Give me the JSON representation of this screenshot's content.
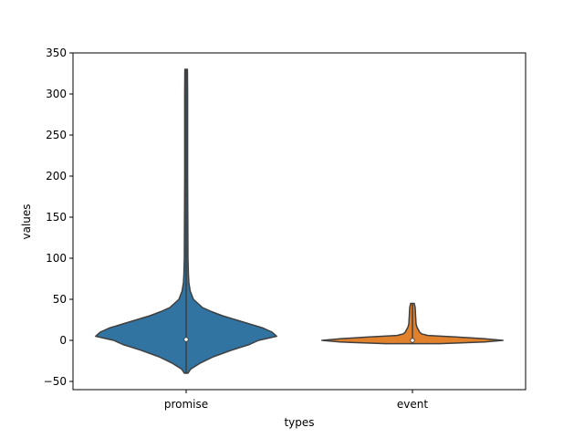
{
  "chart_data": {
    "type": "violin",
    "title": "",
    "xlabel": "types",
    "ylabel": "values",
    "ylim": [
      -60,
      350
    ],
    "yticks": [
      -50,
      0,
      50,
      100,
      150,
      200,
      250,
      300,
      350
    ],
    "grid": false,
    "categories": [
      "promise",
      "event"
    ],
    "series": [
      {
        "category": "promise",
        "color": "#3274a1",
        "min": -40,
        "max": 330,
        "q1": -1,
        "median": 1,
        "q3": 3,
        "density_profile": [
          [
            -40,
            0.02
          ],
          [
            -35,
            0.05
          ],
          [
            -28,
            0.15
          ],
          [
            -20,
            0.3
          ],
          [
            -12,
            0.5
          ],
          [
            -5,
            0.7
          ],
          [
            0,
            0.8
          ],
          [
            5,
            1.0
          ],
          [
            10,
            0.95
          ],
          [
            15,
            0.85
          ],
          [
            20,
            0.7
          ],
          [
            25,
            0.55
          ],
          [
            30,
            0.4
          ],
          [
            35,
            0.28
          ],
          [
            40,
            0.18
          ],
          [
            50,
            0.08
          ],
          [
            60,
            0.045
          ],
          [
            70,
            0.03
          ],
          [
            80,
            0.025
          ],
          [
            100,
            0.02
          ],
          [
            150,
            0.018
          ],
          [
            200,
            0.016
          ],
          [
            250,
            0.016
          ],
          [
            300,
            0.016
          ],
          [
            330,
            0.014
          ]
        ]
      },
      {
        "category": "event",
        "color": "#e1812c",
        "min": -4,
        "max": 45,
        "q1": -0.5,
        "median": 0,
        "q3": 2,
        "density_profile": [
          [
            -4,
            0.3
          ],
          [
            -2,
            0.8
          ],
          [
            0,
            1.0
          ],
          [
            2,
            0.8
          ],
          [
            4,
            0.5
          ],
          [
            6,
            0.17
          ],
          [
            8,
            0.1
          ],
          [
            10,
            0.08
          ],
          [
            12,
            0.07
          ],
          [
            14,
            0.06
          ],
          [
            16,
            0.05
          ],
          [
            20,
            0.04
          ],
          [
            30,
            0.035
          ],
          [
            40,
            0.03
          ],
          [
            45,
            0.02
          ]
        ]
      }
    ]
  }
}
